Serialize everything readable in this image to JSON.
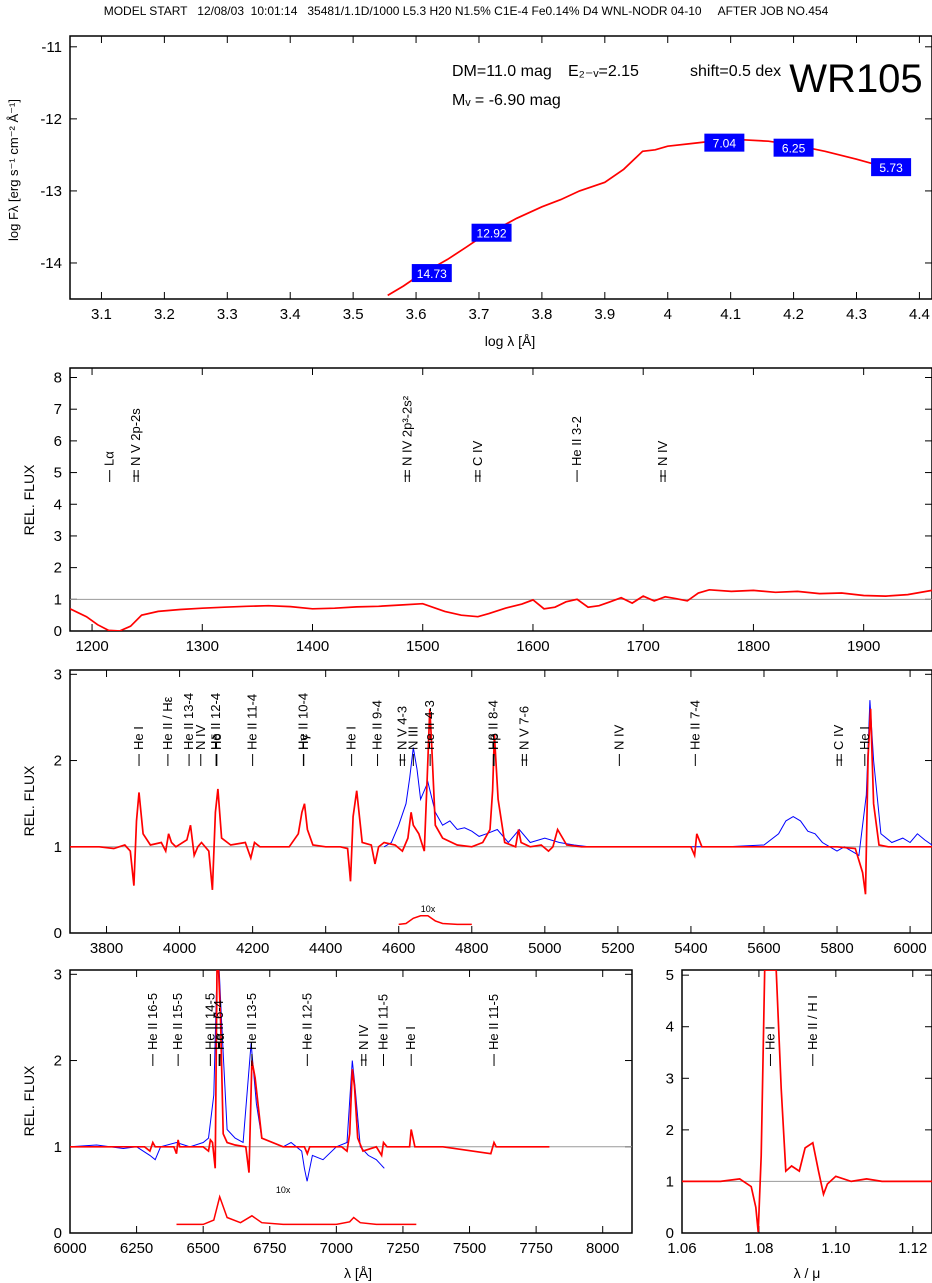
{
  "header": {
    "text": "MODEL START   12/08/03  10:01:14   35481/1.1D/1000 L5.3 H20 N1.5% C1E-4 Fe0.14% D4 WNL-NODR 04-10     AFTER JOB NO.454"
  },
  "colors": {
    "model": "#ff0000",
    "observed": "#0000ff",
    "box": "#0000ff",
    "boxText": "#ffffff",
    "reference": "#9a9a9a",
    "axis": "#000000"
  },
  "chart_data": [
    {
      "id": "sed",
      "type": "line",
      "xlim": [
        3.05,
        4.42
      ],
      "ylim": [
        -14.5,
        -10.85
      ],
      "y_inverted": true,
      "xticks": [
        3.1,
        3.2,
        3.3,
        3.4,
        3.5,
        3.6,
        3.7,
        3.8,
        3.9,
        4.0,
        4.1,
        4.2,
        4.3,
        4.4
      ],
      "yticks": [
        -11,
        -12,
        -13,
        -14
      ],
      "xlabel": "log λ [Å]",
      "ylabel": "log Fλ [erg s⁻¹ cm⁻² Å⁻¹]",
      "title": "WR105",
      "annotations": [
        "DM=11.0 mag",
        "E₂₋ᵥ=2.15",
        "shift=0.5 dex",
        "Mᵥ = -6.90 mag"
      ],
      "model": {
        "x": [
          3.555,
          3.58,
          3.6,
          3.62,
          3.65,
          3.68,
          3.7,
          3.73,
          3.76,
          3.8,
          3.83,
          3.86,
          3.9,
          3.93,
          3.96,
          3.98,
          4.0,
          4.04,
          4.08,
          4.12,
          4.16,
          4.2,
          4.25,
          4.3,
          4.35
        ],
        "y": [
          -14.45,
          -14.32,
          -14.2,
          -14.1,
          -13.95,
          -13.78,
          -13.66,
          -13.52,
          -13.38,
          -13.22,
          -13.12,
          -13.0,
          -12.88,
          -12.7,
          -12.45,
          -12.43,
          -12.38,
          -12.34,
          -12.3,
          -12.29,
          -12.31,
          -12.36,
          -12.45,
          -12.56,
          -12.68
        ]
      },
      "photometry": [
        {
          "label": "14.73",
          "x": 3.625,
          "y": -14.14
        },
        {
          "label": "12.92",
          "x": 3.72,
          "y": -13.58
        },
        {
          "label": "7.04",
          "x": 4.09,
          "y": -12.33
        },
        {
          "label": "6.25",
          "x": 4.2,
          "y": -12.4
        },
        {
          "label": "5.73",
          "x": 4.355,
          "y": -12.67
        }
      ]
    },
    {
      "id": "uv",
      "type": "line",
      "xlim": [
        1180,
        1962
      ],
      "ylim": [
        0,
        8.3
      ],
      "xticks": [
        1200,
        1300,
        1400,
        1500,
        1600,
        1700,
        1800,
        1900
      ],
      "yticks": [
        0,
        1,
        2,
        3,
        4,
        5,
        6,
        7,
        8
      ],
      "ylabel": "REL. FLUX",
      "reference_level": 1,
      "line_ids": [
        {
          "label": "Lα",
          "x": 1216,
          "style": "single"
        },
        {
          "label": "N V 2p-2s",
          "x": 1240,
          "style": "double"
        },
        {
          "label": "N IV 2p³-2s²",
          "x": 1486,
          "style": "double"
        },
        {
          "label": "C IV",
          "x": 1550,
          "style": "double"
        },
        {
          "label": "He II 3-2",
          "x": 1640,
          "style": "single"
        },
        {
          "label": "N IV",
          "x": 1718,
          "style": "double"
        }
      ],
      "model": {
        "x": [
          1180,
          1195,
          1205,
          1215,
          1225,
          1235,
          1245,
          1260,
          1280,
          1300,
          1320,
          1340,
          1360,
          1380,
          1400,
          1420,
          1440,
          1460,
          1480,
          1500,
          1520,
          1535,
          1550,
          1560,
          1575,
          1590,
          1600,
          1610,
          1620,
          1630,
          1640,
          1650,
          1660,
          1670,
          1680,
          1690,
          1700,
          1710,
          1720,
          1730,
          1740,
          1750,
          1760,
          1780,
          1800,
          1820,
          1840,
          1860,
          1880,
          1900,
          1920,
          1940,
          1962
        ],
        "y": [
          0.7,
          0.45,
          0.2,
          0.02,
          0.0,
          0.15,
          0.5,
          0.62,
          0.68,
          0.72,
          0.75,
          0.78,
          0.8,
          0.77,
          0.7,
          0.72,
          0.76,
          0.78,
          0.82,
          0.86,
          0.62,
          0.5,
          0.45,
          0.55,
          0.72,
          0.85,
          0.98,
          0.7,
          0.75,
          0.92,
          1.0,
          0.75,
          0.8,
          0.92,
          1.05,
          0.88,
          1.1,
          0.95,
          1.08,
          1.02,
          0.95,
          1.2,
          1.3,
          1.25,
          1.28,
          1.22,
          1.25,
          1.18,
          1.2,
          1.12,
          1.1,
          1.15,
          1.28
        ]
      }
    },
    {
      "id": "optical",
      "type": "line",
      "xlim": [
        3700,
        6060
      ],
      "ylim": [
        0,
        3.05
      ],
      "xticks": [
        3800,
        4000,
        4200,
        4400,
        4600,
        4800,
        5000,
        5200,
        5400,
        5600,
        5800,
        6000
      ],
      "yticks": [
        0,
        1,
        2,
        3
      ],
      "ylabel": "REL. FLUX",
      "reference_level": 1,
      "inset_label": "10x",
      "inset": {
        "x": [
          4600,
          4620,
          4640,
          4660,
          4680,
          4700,
          4720,
          4760,
          4800
        ],
        "y": [
          0.1,
          0.11,
          0.17,
          0.2,
          0.2,
          0.14,
          0.11,
          0.1,
          0.1
        ]
      },
      "line_ids": [
        {
          "label": "He I",
          "x": 3889,
          "style": "single"
        },
        {
          "label": "He II / Hε",
          "x": 3968,
          "style": "single"
        },
        {
          "label": "He II 13-4",
          "x": 4026,
          "style": "single"
        },
        {
          "label": "N IV",
          "x": 4058,
          "style": "single"
        },
        {
          "label": "He II 12-4",
          "x": 4100,
          "style": "single"
        },
        {
          "label": "Hδ",
          "x": 4102,
          "style": "single"
        },
        {
          "label": "He II 11-4",
          "x": 4200,
          "style": "single"
        },
        {
          "label": "He II 10-4",
          "x": 4339,
          "style": "single"
        },
        {
          "label": "Hγ",
          "x": 4340,
          "style": "single"
        },
        {
          "label": "He I",
          "x": 4471,
          "style": "single"
        },
        {
          "label": "He II 9-4",
          "x": 4542,
          "style": "single"
        },
        {
          "label": "N V 4-3",
          "x": 4610,
          "style": "double"
        },
        {
          "label": "N III",
          "x": 4640,
          "style": "single"
        },
        {
          "label": "He II 4-3",
          "x": 4686,
          "style": "single"
        },
        {
          "label": "He II 8-4",
          "x": 4859,
          "style": "single"
        },
        {
          "label": "Hβ",
          "x": 4861,
          "style": "single"
        },
        {
          "label": "N V 7-6",
          "x": 4944,
          "style": "double"
        },
        {
          "label": "N IV",
          "x": 5204,
          "style": "single"
        },
        {
          "label": "He II 7-4",
          "x": 5412,
          "style": "single"
        },
        {
          "label": "C IV",
          "x": 5806,
          "style": "double"
        },
        {
          "label": "He I",
          "x": 5876,
          "style": "single"
        }
      ],
      "model": {
        "x": [
          3700,
          3780,
          3820,
          3850,
          3865,
          3875,
          3882,
          3889,
          3900,
          3920,
          3950,
          3962,
          3970,
          3978,
          3990,
          4020,
          4030,
          4040,
          4050,
          4060,
          4080,
          4090,
          4098,
          4105,
          4115,
          4140,
          4180,
          4195,
          4205,
          4220,
          4300,
          4325,
          4335,
          4342,
          4350,
          4365,
          4400,
          4440,
          4460,
          4468,
          4475,
          4485,
          4500,
          4525,
          4535,
          4545,
          4560,
          4590,
          4610,
          4625,
          4634,
          4640,
          4655,
          4670,
          4678,
          4685,
          4690,
          4700,
          4720,
          4760,
          4800,
          4830,
          4850,
          4857,
          4862,
          4872,
          4890,
          4920,
          4928,
          4935,
          4960,
          4990,
          5010,
          5022,
          5035,
          5060,
          5100,
          5200,
          5300,
          5400,
          5410,
          5416,
          5430,
          5500,
          5600,
          5700,
          5800,
          5850,
          5870,
          5878,
          5885,
          5892,
          5900,
          5915,
          5940,
          6000,
          6060
        ],
        "y": [
          1.0,
          1.0,
          0.98,
          1.02,
          0.95,
          0.55,
          1.3,
          1.63,
          1.15,
          1.02,
          1.05,
          0.95,
          1.15,
          1.05,
          1.0,
          1.08,
          1.25,
          0.9,
          1.0,
          1.05,
          0.95,
          0.5,
          1.4,
          1.67,
          1.1,
          1.02,
          1.05,
          0.87,
          1.05,
          1.0,
          1.0,
          1.15,
          1.4,
          1.5,
          1.2,
          1.02,
          1.0,
          1.0,
          0.98,
          0.6,
          1.35,
          1.65,
          1.05,
          1.02,
          0.8,
          1.0,
          1.05,
          1.02,
          0.95,
          1.1,
          1.4,
          1.25,
          1.15,
          0.95,
          1.8,
          2.6,
          2.2,
          1.25,
          1.1,
          1.02,
          1.0,
          1.05,
          1.2,
          1.65,
          2.3,
          1.55,
          1.05,
          1.0,
          1.2,
          1.05,
          1.0,
          1.02,
          0.95,
          1.0,
          1.2,
          1.02,
          1.0,
          1.0,
          1.0,
          1.0,
          0.9,
          1.15,
          1.0,
          1.0,
          1.0,
          1.0,
          1.0,
          0.98,
          0.7,
          0.45,
          2.05,
          2.6,
          1.5,
          1.02,
          1.0,
          1.0,
          1.0
        ]
      },
      "observed": {
        "x": [
          4560,
          4580,
          4600,
          4620,
          4630,
          4640,
          4650,
          4660,
          4680,
          4700,
          4720,
          4740,
          4760,
          4780,
          4800,
          4820,
          4840,
          4870,
          4900,
          4930,
          4960,
          5000,
          5040,
          5080,
          5120,
          5200,
          5300,
          5400,
          5500,
          5600,
          5640,
          5660,
          5680,
          5700,
          5720,
          5740,
          5760,
          5780,
          5800,
          5820,
          5840,
          5860,
          5880,
          5890,
          5900,
          5920,
          5950,
          5980,
          6000,
          6020,
          6040,
          6060
        ],
        "y": [
          1.0,
          1.05,
          1.25,
          1.5,
          1.8,
          2.15,
          1.9,
          1.55,
          1.75,
          1.4,
          1.25,
          1.3,
          1.2,
          1.22,
          1.18,
          1.12,
          1.15,
          1.2,
          1.05,
          1.2,
          1.05,
          1.1,
          1.05,
          1.02,
          1.0,
          1.0,
          1.0,
          1.0,
          1.0,
          1.02,
          1.15,
          1.3,
          1.35,
          1.3,
          1.18,
          1.15,
          1.05,
          1.0,
          0.95,
          1.0,
          0.95,
          0.9,
          1.6,
          2.7,
          2.0,
          1.15,
          1.05,
          1.1,
          1.05,
          1.15,
          1.08,
          1.02
        ]
      }
    },
    {
      "id": "red",
      "type": "line",
      "xlim": [
        6000,
        8110
      ],
      "ylim": [
        0,
        3.05
      ],
      "xticks": [
        6000,
        6250,
        6500,
        6750,
        7000,
        7250,
        7500,
        7750,
        8000
      ],
      "yticks": [
        0,
        1,
        2,
        3
      ],
      "xlabel": "λ [Å]",
      "ylabel": "REL. FLUX",
      "reference_level": 1,
      "inset_label": "10x",
      "inset": {
        "x": [
          6400,
          6500,
          6540,
          6562,
          6590,
          6640,
          6683,
          6720,
          6800,
          7000,
          7050,
          7065,
          7090,
          7150,
          7300
        ],
        "y": [
          0.1,
          0.1,
          0.15,
          0.42,
          0.18,
          0.12,
          0.2,
          0.12,
          0.1,
          0.1,
          0.13,
          0.18,
          0.12,
          0.1,
          0.1
        ]
      },
      "line_ids": [
        {
          "label": "He II 16-5",
          "x": 6311,
          "style": "single"
        },
        {
          "label": "He II 15-5",
          "x": 6406,
          "style": "single"
        },
        {
          "label": "He II 14-5",
          "x": 6527,
          "style": "single"
        },
        {
          "label": "He II 6-4",
          "x": 6560,
          "style": "single"
        },
        {
          "label": "Hα",
          "x": 6563,
          "style": "single"
        },
        {
          "label": "He II 13-5",
          "x": 6683,
          "style": "single"
        },
        {
          "label": "He II 12-5",
          "x": 6891,
          "style": "single"
        },
        {
          "label": "N IV",
          "x": 7103,
          "style": "double"
        },
        {
          "label": "He II 11-5",
          "x": 7177,
          "style": "single"
        },
        {
          "label": "He I",
          "x": 7281,
          "style": "single"
        },
        {
          "label": "He II 11-5",
          "x": 7592,
          "style": "single"
        }
      ],
      "model": {
        "x": [
          6000,
          6280,
          6300,
          6311,
          6320,
          6390,
          6400,
          6406,
          6412,
          6500,
          6520,
          6527,
          6535,
          6545,
          6552,
          6558,
          6565,
          6575,
          6590,
          6620,
          6660,
          6672,
          6683,
          6695,
          6720,
          6800,
          6880,
          6891,
          6900,
          6950,
          7020,
          7040,
          7050,
          7060,
          7068,
          7080,
          7100,
          7150,
          7170,
          7177,
          7190,
          7250,
          7275,
          7281,
          7295,
          7400,
          7580,
          7592,
          7600,
          7800
        ],
        "y": [
          1.0,
          1.0,
          0.95,
          1.05,
          1.0,
          1.0,
          0.92,
          1.08,
          1.0,
          1.0,
          0.95,
          1.08,
          1.05,
          0.75,
          3.05,
          3.05,
          2.5,
          1.15,
          1.05,
          1.02,
          1.0,
          0.7,
          2.0,
          1.8,
          1.1,
          1.0,
          1.0,
          0.92,
          1.0,
          1.0,
          1.0,
          0.95,
          1.15,
          1.9,
          1.7,
          1.1,
          0.95,
          1.0,
          0.9,
          1.05,
          1.0,
          1.0,
          1.0,
          1.2,
          1.0,
          1.0,
          0.92,
          1.05,
          1.0,
          1.0
        ]
      },
      "observed": {
        "x": [
          6000,
          6100,
          6200,
          6250,
          6300,
          6320,
          6340,
          6400,
          6450,
          6500,
          6520,
          6540,
          6552,
          6560,
          6570,
          6590,
          6620,
          6650,
          6680,
          6700,
          6720,
          6760,
          6800,
          6830,
          6850,
          6870,
          6880,
          6890,
          6910,
          6950,
          7000,
          7040,
          7060,
          7070,
          7090,
          7120,
          7150,
          7180
        ],
        "y": [
          1.0,
          1.02,
          0.98,
          1.0,
          0.9,
          0.85,
          1.0,
          1.05,
          1.0,
          1.05,
          1.1,
          1.6,
          3.05,
          3.05,
          2.4,
          1.2,
          1.1,
          1.05,
          2.2,
          1.5,
          1.1,
          1.05,
          1.0,
          1.05,
          1.0,
          0.95,
          0.75,
          0.6,
          0.9,
          0.85,
          1.0,
          1.05,
          2.0,
          1.7,
          1.0,
          0.9,
          0.85,
          0.75
        ]
      }
    },
    {
      "id": "ir",
      "type": "line",
      "xlim": [
        1.06,
        1.125
      ],
      "ylim": [
        0,
        5.1
      ],
      "xticks": [
        1.06,
        1.08,
        1.1,
        1.12
      ],
      "xtick_labels": [
        "1.06",
        "1.08",
        "1.10",
        "1.12"
      ],
      "yticks": [
        0,
        1,
        2,
        3,
        4,
        5
      ],
      "xlabel": "λ / μ",
      "reference_level": 1,
      "line_ids": [
        {
          "label": "He I",
          "x": 1.083,
          "style": "single"
        },
        {
          "label": "He II / H I",
          "x": 1.094,
          "style": "single"
        }
      ],
      "model": {
        "x": [
          1.06,
          1.07,
          1.075,
          1.078,
          1.0792,
          1.0798,
          1.0806,
          1.0815,
          1.0825,
          1.0845,
          1.0858,
          1.087,
          1.0885,
          1.0905,
          1.092,
          1.094,
          1.0955,
          1.0968,
          1.0978,
          1.1,
          1.104,
          1.108,
          1.112,
          1.12,
          1.125
        ],
        "y": [
          1.0,
          1.0,
          1.05,
          0.9,
          0.5,
          0.02,
          1.5,
          5.1,
          5.1,
          5.1,
          2.8,
          1.2,
          1.3,
          1.2,
          1.65,
          1.75,
          1.2,
          0.75,
          0.95,
          1.1,
          1.0,
          1.05,
          1.0,
          1.0,
          1.0
        ]
      }
    }
  ]
}
